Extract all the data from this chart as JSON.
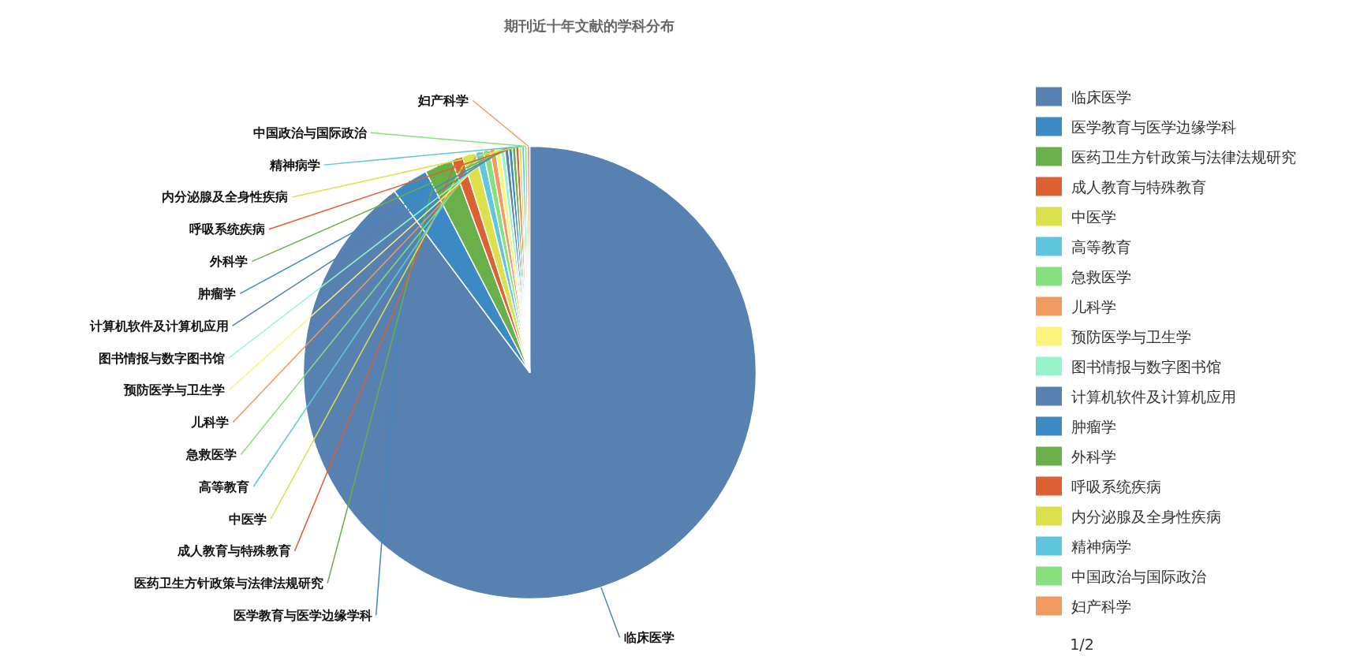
{
  "chart_data": {
    "type": "pie",
    "title": "期刊近十年文献的学科分布",
    "categories": [
      "临床医学",
      "医学教育与医学边缘学科",
      "医药卫生方针政策与法律法规研究",
      "成人教育与特殊教育",
      "中医学",
      "高等教育",
      "急救医学",
      "儿科学",
      "预防医学与卫生学",
      "图书情报与数字图书馆",
      "计算机软件及计算机应用",
      "肿瘤学",
      "外科学",
      "呼吸系统疾病",
      "内分泌腺及全身性疾病",
      "精神病学",
      "中国政治与国际政治",
      "妇产科学"
    ],
    "values": [
      89.8,
      2.6,
      2.0,
      0.8,
      0.95,
      0.55,
      0.47,
      0.4,
      0.35,
      0.3,
      0.28,
      0.26,
      0.25,
      0.23,
      0.2,
      0.2,
      0.18,
      0.18
    ],
    "colors": [
      "#5681b0",
      "#3c8ac3",
      "#6ab04a",
      "#dd6033",
      "#dce04a",
      "#5ec7dd",
      "#86e07d",
      "#f09a60",
      "#fcf27c",
      "#96f5c8",
      "#5681b0",
      "#3c8ac3",
      "#6ab04a",
      "#dd6033",
      "#dce04a",
      "#5ec7dd",
      "#86e07d",
      "#f09a60"
    ],
    "legend": "right",
    "annotations": [
      "1/2"
    ]
  }
}
